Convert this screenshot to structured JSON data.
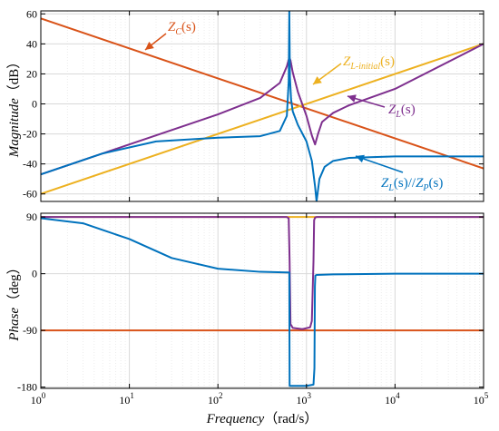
{
  "chart_data": [
    {
      "type": "line",
      "panel": "magnitude",
      "ylabel": "Magnitude（dB）",
      "xscale": "log",
      "xlim": [
        1,
        100000
      ],
      "ylim": [
        -65,
        62
      ],
      "yticks": [
        {
          "value": 60,
          "label": "60"
        },
        {
          "value": 40,
          "label": "40"
        },
        {
          "value": 20,
          "label": "20"
        },
        {
          "value": 0,
          "label": "0"
        },
        {
          "value": -20,
          "label": "-20"
        },
        {
          "value": -40,
          "label": "-40"
        },
        {
          "value": -60,
          "label": "-60"
        }
      ],
      "grid": true,
      "series": [
        {
          "color": "#d95319",
          "x": [
            1,
            100000
          ],
          "y": [
            57,
            -43
          ]
        },
        {
          "color": "#edb120",
          "x": [
            1,
            100000
          ],
          "y": [
            -60,
            40
          ]
        },
        {
          "color": "#7e2f8e",
          "x": [
            1,
            100,
            300,
            500,
            600,
            640,
            660,
            700,
            800,
            1000,
            1150,
            1250,
            1350,
            1500,
            2000,
            3000,
            10000,
            100000
          ],
          "y": [
            -47,
            -7,
            4,
            14,
            25,
            31,
            29,
            21,
            8,
            -8,
            -21,
            -27,
            -20,
            -12,
            -6,
            -1,
            10,
            40
          ]
        },
        {
          "color": "#0072bd",
          "x": [
            1,
            5,
            20,
            100,
            300,
            500,
            600,
            630,
            640,
            650,
            670,
            700,
            800,
            1000,
            1150,
            1250,
            1300,
            1400,
            1600,
            2000,
            3000,
            10000,
            100000
          ],
          "y": [
            -47,
            -33,
            -25,
            -22.5,
            -21.5,
            -18,
            -8,
            15,
            62,
            18,
            3,
            -5,
            -14,
            -25,
            -38,
            -55,
            -65,
            -50,
            -42,
            -38,
            -36,
            -35,
            -35
          ]
        }
      ],
      "annotations": [
        {
          "main": "Z",
          "sub": "C",
          "tail": "(s)",
          "color": "#d95319"
        },
        {
          "main": "Z",
          "sub": "L-initial",
          "tail": "(s)",
          "color": "#edb120"
        },
        {
          "main": "Z",
          "sub": "L",
          "tail": "(s)",
          "color": "#7e2f8e"
        },
        {
          "main": "Z",
          "sub": "L",
          "tail": "(s)//",
          "main2": "Z",
          "sub2": "P",
          "tail2": "(s)",
          "color": "#0072bd"
        }
      ]
    },
    {
      "type": "line",
      "panel": "phase",
      "ylabel": "Phase（deg）",
      "xlabel": "Frequency（rad/s）",
      "xscale": "log",
      "xlim": [
        1,
        100000
      ],
      "ylim": [
        -182,
        96
      ],
      "xticks": [
        {
          "value": 1,
          "label": "10",
          "exp": "0"
        },
        {
          "value": 10,
          "label": "10",
          "exp": "1"
        },
        {
          "value": 100,
          "label": "10",
          "exp": "2"
        },
        {
          "value": 1000,
          "label": "10",
          "exp": "3"
        },
        {
          "value": 10000,
          "label": "10",
          "exp": "4"
        },
        {
          "value": 100000,
          "label": "10",
          "exp": "5"
        }
      ],
      "yticks": [
        {
          "value": 90,
          "label": "90"
        },
        {
          "value": 0,
          "label": "0"
        },
        {
          "value": -90,
          "label": "-90"
        },
        {
          "value": -180,
          "label": "-180"
        }
      ],
      "grid": true,
      "series": [
        {
          "color": "#d95319",
          "x": [
            1,
            100000
          ],
          "y": [
            -90,
            -90
          ]
        },
        {
          "color": "#edb120",
          "x": [
            1,
            100000
          ],
          "y": [
            90,
            90
          ]
        },
        {
          "color": "#7e2f8e",
          "x": [
            1,
            600,
            630,
            645,
            660,
            700,
            900,
            1100,
            1150,
            1200,
            1220,
            1250,
            1300,
            2000,
            100000
          ],
          "y": [
            90,
            90,
            88,
            20,
            -80,
            -86,
            -88,
            -85,
            -75,
            20,
            85,
            89,
            90,
            90,
            90
          ]
        },
        {
          "color": "#0072bd",
          "x": [
            1,
            3,
            10,
            30,
            100,
            300,
            600,
            640,
            645,
            660,
            1000,
            1200,
            1230,
            1245,
            1260,
            1300,
            2000,
            10000,
            100000
          ],
          "y": [
            88,
            80,
            55,
            25,
            8,
            3,
            2,
            2,
            -178,
            -178,
            -178,
            -176,
            -150,
            -20,
            -3,
            -2,
            -1,
            0,
            0
          ]
        }
      ]
    }
  ]
}
